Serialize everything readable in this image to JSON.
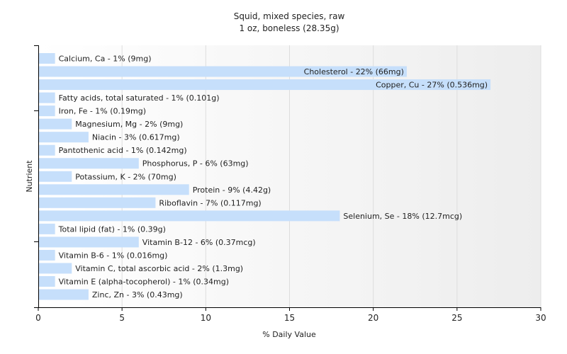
{
  "chart_data": {
    "type": "bar",
    "orientation": "horizontal",
    "title": "Squid, mixed species, raw",
    "subtitle": "1 oz, boneless (28.35g)",
    "xlabel": "% Daily Value",
    "ylabel": "Nutrient",
    "xlim": [
      0,
      30
    ],
    "xticks": [
      0,
      5,
      10,
      15,
      20,
      25,
      30
    ],
    "grid": true,
    "bar_color": "#c6dffb",
    "categories": [
      "Calcium, Ca",
      "Cholesterol",
      "Copper, Cu",
      "Fatty acids, total saturated",
      "Iron, Fe",
      "Magnesium, Mg",
      "Niacin",
      "Pantothenic acid",
      "Phosphorus, P",
      "Potassium, K",
      "Protein",
      "Riboflavin",
      "Selenium, Se",
      "Total lipid (fat)",
      "Vitamin B-12",
      "Vitamin B-6",
      "Vitamin C, total ascorbic acid",
      "Vitamin E (alpha-tocopherol)",
      "Zinc, Zn"
    ],
    "values": [
      1,
      22,
      27,
      1,
      1,
      2,
      3,
      1,
      6,
      2,
      9,
      7,
      18,
      1,
      6,
      1,
      2,
      1,
      3
    ],
    "labels": [
      "Calcium, Ca - 1% (9mg)",
      "Cholesterol - 22% (66mg)",
      "Copper, Cu - 27% (0.536mg)",
      "Fatty acids, total saturated - 1% (0.101g)",
      "Iron, Fe - 1% (0.19mg)",
      "Magnesium, Mg - 2% (9mg)",
      "Niacin - 3% (0.617mg)",
      "Pantothenic acid - 1% (0.142mg)",
      "Phosphorus, P - 6% (63mg)",
      "Potassium, K - 2% (70mg)",
      "Protein - 9% (4.42g)",
      "Riboflavin - 7% (0.117mg)",
      "Selenium, Se - 18% (12.7mcg)",
      "Total lipid (fat) - 1% (0.39g)",
      "Vitamin B-12 - 6% (0.37mcg)",
      "Vitamin B-6 - 1% (0.016mg)",
      "Vitamin C, total ascorbic acid - 2% (1.3mg)",
      "Vitamin E (alpha-tocopherol) - 1% (0.34mg)",
      "Zinc, Zn - 3% (0.43mg)"
    ],
    "labels_inside_bar": [
      false,
      true,
      true,
      false,
      false,
      false,
      false,
      false,
      false,
      false,
      false,
      false,
      false,
      false,
      false,
      false,
      false,
      false,
      false
    ]
  }
}
